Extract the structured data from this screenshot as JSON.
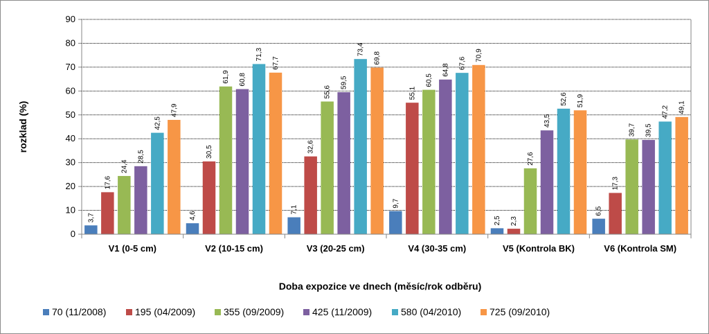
{
  "chart_data": {
    "type": "bar",
    "title": "",
    "xlabel": "Doba expozice ve dnech (měsíc/rok odběru)",
    "ylabel": "rozklad (%)",
    "ylim": [
      0,
      90
    ],
    "yticks": [
      0,
      10,
      20,
      30,
      40,
      50,
      60,
      70,
      80,
      90
    ],
    "grid": true,
    "legend_position": "bottom",
    "categories": [
      "V1 (0-5 cm)",
      "V2 (10-15 cm)",
      "V3 (20-25 cm)",
      "V4 (30-35 cm)",
      "V5 (Kontrola BK)",
      "V6 (Kontrola SM)"
    ],
    "series": [
      {
        "name": "70 (11/2008)",
        "color": "#4a7ebb",
        "values": [
          3.7,
          4.6,
          7.1,
          9.7,
          2.5,
          6.5
        ],
        "labels": [
          "3,7",
          "4,6",
          "7,1",
          "9,7",
          "2,5",
          "6,5"
        ]
      },
      {
        "name": "195 (04/2009)",
        "color": "#be4b48",
        "values": [
          17.6,
          30.5,
          32.6,
          55.1,
          2.3,
          17.3
        ],
        "labels": [
          "17,6",
          "30,5",
          "32,6",
          "55,1",
          "2,3",
          "17,3"
        ]
      },
      {
        "name": "355 (09/2009)",
        "color": "#98b954",
        "values": [
          24.4,
          61.9,
          55.6,
          60.5,
          27.6,
          39.7
        ],
        "labels": [
          "24,4",
          "61,9",
          "55,6",
          "60,5",
          "27,6",
          "39,7"
        ]
      },
      {
        "name": "425 (11/2009)",
        "color": "#7d60a0",
        "values": [
          28.5,
          60.8,
          59.5,
          64.8,
          43.5,
          39.5
        ],
        "labels": [
          "28,5",
          "60,8",
          "59,5",
          "64,8",
          "43,5",
          "39,5"
        ]
      },
      {
        "name": "580 (04/2010)",
        "color": "#46aac5",
        "values": [
          42.5,
          71.3,
          73.4,
          67.6,
          52.6,
          47.2
        ],
        "labels": [
          "42,5",
          "71,3",
          "73,4",
          "67,6",
          "52,6",
          "47,2"
        ]
      },
      {
        "name": "725 (09/2010)",
        "color": "#f79646",
        "values": [
          47.9,
          67.7,
          69.8,
          70.9,
          51.9,
          49.1
        ],
        "labels": [
          "47,9",
          "67,7",
          "69,8",
          "70,9",
          "51,9",
          "49,1"
        ]
      }
    ]
  }
}
